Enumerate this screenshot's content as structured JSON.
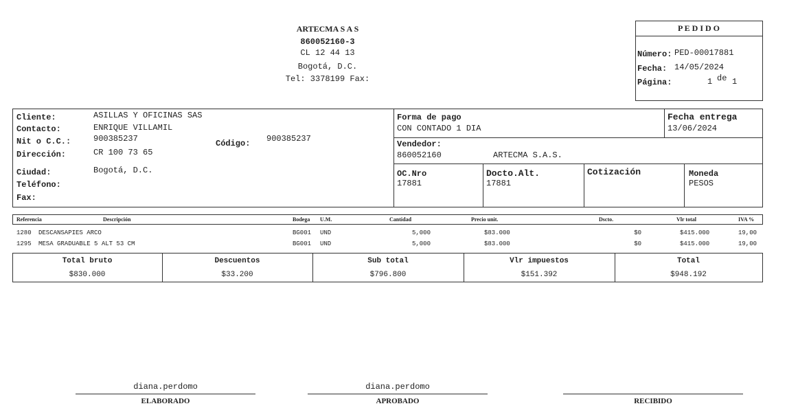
{
  "header": {
    "company": "ARTECMA S A S",
    "nit": "860052160-3",
    "address": "CL 12 44 13",
    "city": "Bogotá, D.C.",
    "phone": "Tel: 3378199 Fax:"
  },
  "order": {
    "title": "P E D I D O",
    "number_label": "Número:",
    "number": "PED-00017881",
    "date_label": "Fecha:",
    "date": "14/05/2024",
    "page_label": "Página:",
    "page": "1",
    "page_of": "de",
    "page_total": "1"
  },
  "client": {
    "client_label": "Cliente:",
    "client": "ASILLAS Y OFICINAS SAS",
    "contact_label": "Contacto:",
    "contact": "ENRIQUE VILLAMIL",
    "nit_label": "Nit o C.C.:",
    "nit": "900385237",
    "code_label": "Código:",
    "code": "900385237",
    "address_label": "Dirección:",
    "address": "CR 100 73 65",
    "city_label": "Ciudad:",
    "city": "Bogotá, D.C.",
    "phone_label": "Teléfono:",
    "fax_label": "Fax:"
  },
  "terms": {
    "payment_label": "Forma de pago",
    "payment": "CON CONTADO 1 DIA",
    "delivery_label": "Fecha entrega",
    "delivery": "13/06/2024",
    "seller_label": "Vendedor:",
    "seller_id": "860052160",
    "seller_name": "ARTECMA S.A.S.",
    "oc_label": "OC.Nro",
    "oc": "17881",
    "alt_label": "Docto.Alt.",
    "alt": "17881",
    "quote_label": "Cotización",
    "currency_label": "Moneda",
    "currency": "PESOS"
  },
  "items": {
    "headers": [
      "Referencia",
      "Descripción",
      "Bodega",
      "U.M.",
      "Cantidad",
      "Precio unit.",
      "Dscto.",
      "Vlr total",
      "IVA %"
    ],
    "rows": [
      [
        "1280",
        "DESCANSAPIES ARCO",
        "BG001",
        "UND",
        "5,000",
        "$83.000",
        "$0",
        "$415.000",
        "19,00"
      ],
      [
        "1295",
        "MESA GRADUABLE 5 ALT 53 CM",
        "BG001",
        "UND",
        "5,000",
        "$83.000",
        "$0",
        "$415.000",
        "19,00"
      ]
    ]
  },
  "totals": {
    "headers": [
      "Total bruto",
      "Descuentos",
      "Sub total",
      "Vlr impuestos",
      "Total"
    ],
    "values": [
      "$830.000",
      "$33.200",
      "$796.800",
      "$151.392",
      "$948.192"
    ]
  },
  "signatures": [
    {
      "name": "diana.perdomo",
      "role": "ELABORADO"
    },
    {
      "name": "diana.perdomo",
      "role": "APROBADO"
    },
    {
      "role": "RECIBIDO"
    }
  ]
}
